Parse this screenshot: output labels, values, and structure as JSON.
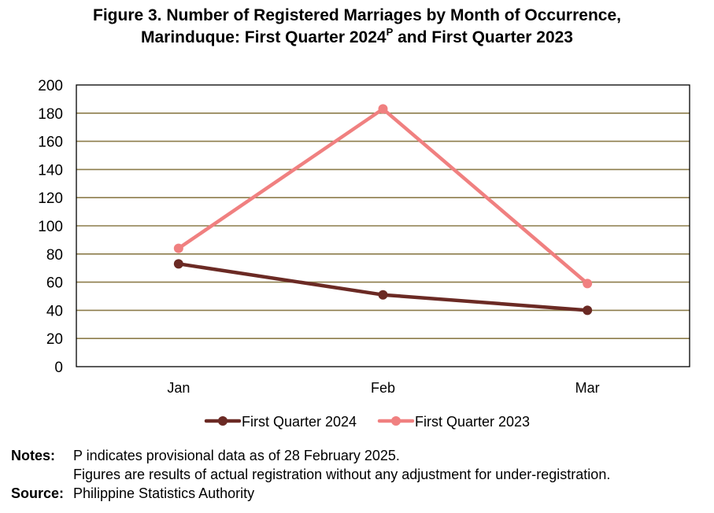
{
  "title": {
    "line1": "Figure 3. Number of Registered Marriages by Month of Occurrence,",
    "line2_prefix": "Marinduque: First Quarter 2024",
    "line2_superscript": "P",
    "line2_suffix": " and First Quarter 2023"
  },
  "chart_data": {
    "type": "line",
    "categories": [
      "Jan",
      "Feb",
      "Mar"
    ],
    "series": [
      {
        "name": "First Quarter 2024",
        "values": [
          73,
          51,
          40
        ],
        "color": "#6b2a24"
      },
      {
        "name": "First Quarter 2023",
        "values": [
          84,
          183,
          59
        ],
        "color": "#f08080"
      }
    ],
    "ylim": [
      0,
      200
    ],
    "yticks": [
      0,
      20,
      40,
      60,
      80,
      100,
      120,
      140,
      160,
      180,
      200
    ],
    "grid": true,
    "grid_color": "#8c7c4a",
    "legend_position": "bottom",
    "xlabel": "",
    "ylabel": ""
  },
  "notes": {
    "label": "Notes:",
    "line1": "P indicates provisional data as of 28 February 2025.",
    "line2": "Figures are results of actual registration without any adjustment for under-registration."
  },
  "source": {
    "label": "Source:",
    "text": "Philippine Statistics Authority"
  }
}
